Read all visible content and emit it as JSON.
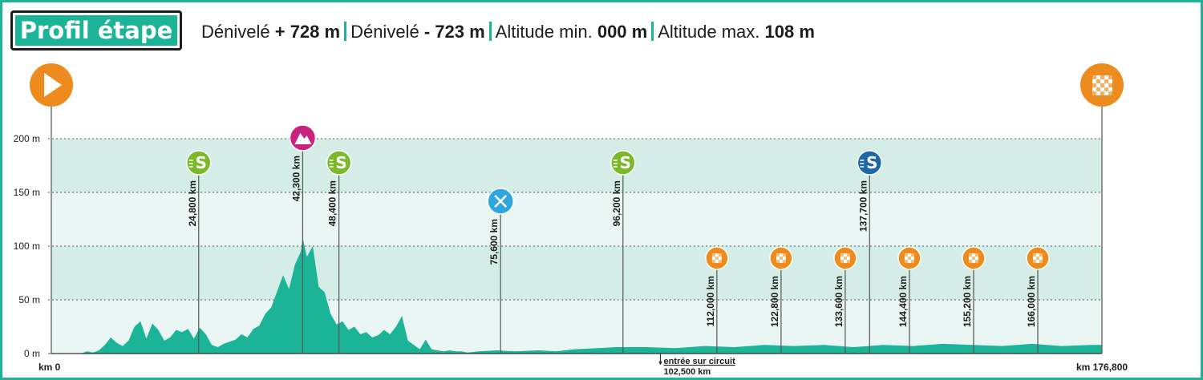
{
  "title": "Profil étape",
  "stats": [
    {
      "label": "Dénivelé",
      "value": "+ 728 m"
    },
    {
      "label": "Dénivelé",
      "value": "- 723 m"
    },
    {
      "label": "Altitude min.",
      "value": "000 m"
    },
    {
      "label": "Altitude max.",
      "value": "108 m"
    }
  ],
  "colors": {
    "accent": "#1cb496",
    "band_dark": "#d4ede6",
    "band_light": "#eaf6f3",
    "sprint_green": "#7ab929",
    "sprint_blue": "#1d66a8",
    "climb_pink": "#c8247f",
    "feed_blue": "#2fa6e0",
    "finish_orange": "#ed8b1e"
  },
  "chart_data": {
    "type": "area",
    "xlabel": "",
    "ylabel": "",
    "xlim": [
      0,
      176.8
    ],
    "ylim": [
      0,
      200
    ],
    "yticks": [
      0,
      50,
      100,
      150,
      200
    ],
    "ytick_labels": [
      "0 m",
      "50 m",
      "100 m",
      "150 m",
      "200 m"
    ],
    "grid": true,
    "x_start_label": "km 0",
    "x_end_label": "km 176,800",
    "profile": {
      "x": [
        0,
        5,
        6,
        7,
        8,
        9,
        10,
        11,
        12,
        13,
        14,
        15,
        16,
        17,
        18,
        19,
        20,
        21,
        22,
        23,
        24,
        25,
        26,
        27,
        28,
        29,
        30,
        31,
        32,
        33,
        34,
        35,
        36,
        37,
        38,
        39,
        40,
        41,
        42,
        42.3,
        43,
        44,
        45,
        46,
        47,
        48,
        49,
        50,
        51,
        52,
        53,
        54,
        55,
        56,
        57,
        58,
        59,
        60,
        61,
        62,
        63,
        64,
        65,
        66,
        67,
        68,
        69,
        70,
        72,
        75,
        78,
        82,
        85,
        88,
        92,
        95,
        96,
        100,
        105,
        110,
        115,
        120,
        125,
        130,
        135,
        140,
        145,
        150,
        155,
        160,
        165,
        170,
        175,
        176.8
      ],
      "y": [
        0,
        0,
        2,
        1,
        3,
        8,
        15,
        10,
        7,
        12,
        25,
        30,
        14,
        28,
        22,
        12,
        15,
        22,
        20,
        23,
        14,
        24,
        18,
        8,
        6,
        9,
        11,
        13,
        18,
        15,
        23,
        26,
        37,
        43,
        58,
        73,
        60,
        83,
        95,
        108,
        90,
        100,
        62,
        57,
        37,
        27,
        30,
        22,
        25,
        18,
        20,
        15,
        17,
        22,
        18,
        25,
        35,
        12,
        8,
        4,
        13,
        4,
        3,
        2,
        3,
        2,
        2,
        1,
        2,
        3,
        2,
        3,
        2,
        4,
        5,
        6,
        6,
        6,
        5,
        7,
        6,
        8,
        7,
        8,
        6,
        8,
        7,
        9,
        8,
        7,
        9,
        7,
        8,
        8
      ]
    },
    "points": [
      {
        "km": 24.8,
        "label": "24,800 km",
        "type": "sprint",
        "color": "green"
      },
      {
        "km": 42.3,
        "label": "42,300 km",
        "type": "climb"
      },
      {
        "km": 48.4,
        "label": "48,400 km",
        "type": "sprint",
        "color": "green"
      },
      {
        "km": 75.6,
        "label": "75,600 km",
        "type": "feed"
      },
      {
        "km": 96.2,
        "label": "96,200 km",
        "type": "sprint",
        "color": "green"
      },
      {
        "km": 112.0,
        "label": "112,000 km",
        "type": "lap"
      },
      {
        "km": 122.8,
        "label": "122,800 km",
        "type": "lap"
      },
      {
        "km": 133.6,
        "label": "133,600 km",
        "type": "lap"
      },
      {
        "km": 137.7,
        "label": "137,700 km",
        "type": "sprint",
        "color": "blue"
      },
      {
        "km": 144.4,
        "label": "144,400 km",
        "type": "lap"
      },
      {
        "km": 155.2,
        "label": "155,200 km",
        "type": "lap"
      },
      {
        "km": 166.0,
        "label": "166,000 km",
        "type": "lap"
      }
    ],
    "circuit_entry": {
      "km": 102.5,
      "label": "entrée sur circuit",
      "km_label": "102,500 km"
    }
  }
}
